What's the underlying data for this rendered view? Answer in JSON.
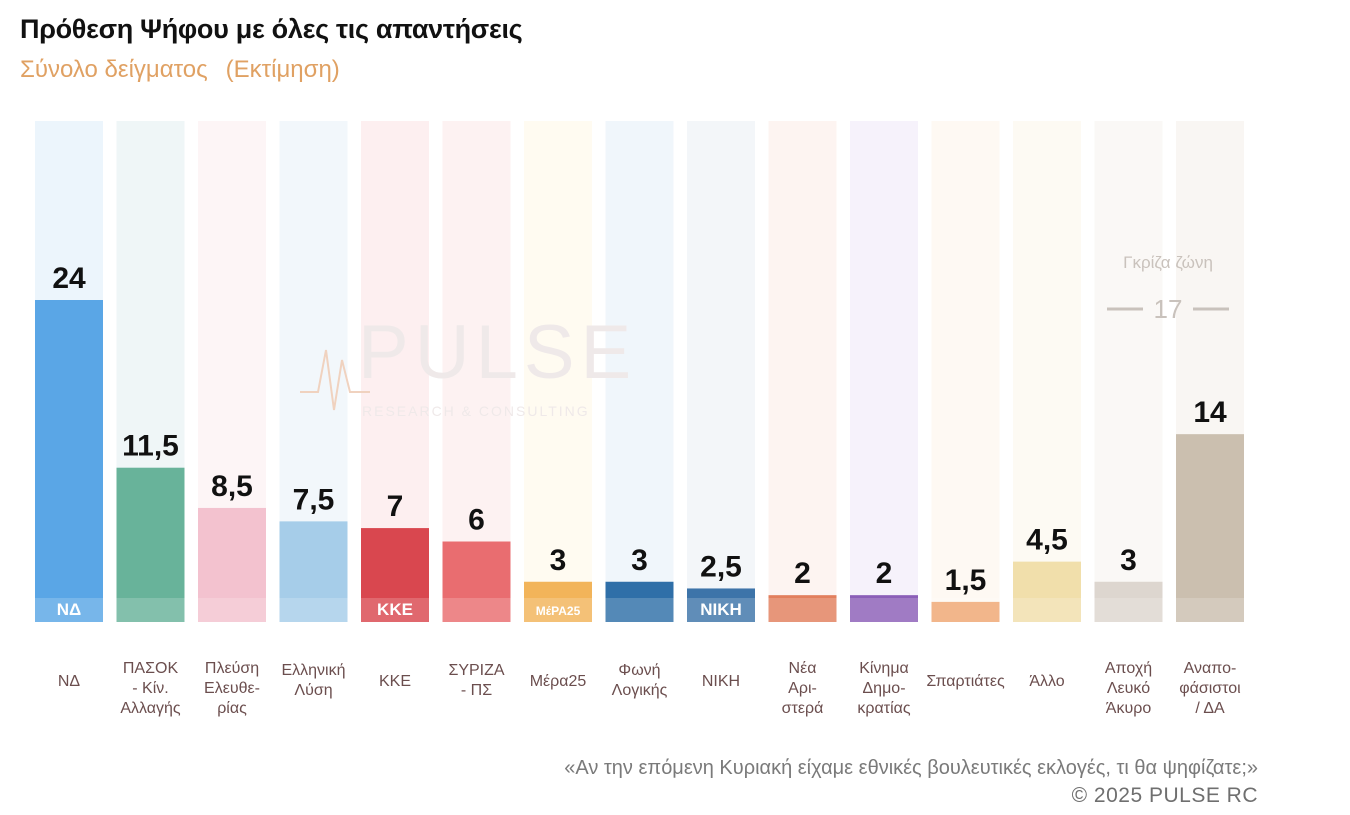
{
  "header": {
    "title": "Πρόθεση Ψήφου με όλες τις απαντήσεις",
    "subtitle_a": "Σύνολο δείγματος",
    "subtitle_b": "(Εκτίμηση)"
  },
  "watermark": {
    "brand": "PULSE",
    "tagline": "RESEARCH & CONSULTING"
  },
  "grey_zone": {
    "label": "Γκρίζα ζώνη",
    "value_text": "17"
  },
  "footer": {
    "question": "«Αν την επόμενη Κυριακή είχαμε εθνικές βουλευτικές εκλογές, τι θα ψηφίζατε;»",
    "copyright": "©  2025  PULSE RC"
  },
  "chart_data": {
    "type": "bar",
    "ylim": [
      0,
      26
    ],
    "grid": false,
    "categories": [
      {
        "lines": [
          "ΝΔ"
        ],
        "value": 24,
        "label": "24",
        "color": "#5aa6e6",
        "bg": "#dcecfa",
        "logo": "ΝΔ"
      },
      {
        "lines": [
          "ΠΑΣΟΚ",
          "- Κίν.",
          "Αλλαγής"
        ],
        "value": 11.5,
        "label": "11,5",
        "color": "#68b39a",
        "bg": "#e1eef0",
        "logo": ""
      },
      {
        "lines": [
          "Πλεύση",
          "Ελευθε-",
          "ρίας"
        ],
        "value": 8.5,
        "label": "8,5",
        "color": "#f3c2cf",
        "bg": "#fbecef",
        "logo": ""
      },
      {
        "lines": [
          "Ελληνική",
          "Λύση"
        ],
        "value": 7.5,
        "label": "7,5",
        "color": "#a6cde9",
        "bg": "#e7f1f8",
        "logo": ""
      },
      {
        "lines": [
          "ΚΚΕ"
        ],
        "value": 7,
        "label": "7",
        "color": "#d9474f",
        "bg": "#fbe2e3",
        "logo": "ΚΚΕ"
      },
      {
        "lines": [
          "ΣΥΡΙΖΑ",
          "- ΠΣ"
        ],
        "value": 6,
        "label": "6",
        "color": "#e96d70",
        "bg": "#fce8e8",
        "logo": ""
      },
      {
        "lines": [
          "Μέρα25"
        ],
        "value": 3,
        "label": "3",
        "color": "#f2b45a",
        "bg": "#fff7e6",
        "logo": "ΜέΡΑ25"
      },
      {
        "lines": [
          "Φωνή",
          "Λογικής"
        ],
        "value": 3,
        "label": "3",
        "color": "#2f6fa8",
        "bg": "#e4eef8",
        "logo": ""
      },
      {
        "lines": [
          "ΝΙΚΗ"
        ],
        "value": 2.5,
        "label": "2,5",
        "color": "#3d74a9",
        "bg": "#e9eef4",
        "logo": "ΝΙΚΗ"
      },
      {
        "lines": [
          "Νέα",
          "Αρι-",
          "στερά"
        ],
        "value": 2,
        "label": "2",
        "color": "#e27f5d",
        "bg": "#fcebe5",
        "logo": ""
      },
      {
        "lines": [
          "Κίνημα",
          "Δημο-",
          "κρατίας"
        ],
        "value": 2,
        "label": "2",
        "color": "#8b5fb8",
        "bg": "#efe8f7",
        "logo": ""
      },
      {
        "lines": [
          "Σπαρτιάτες"
        ],
        "value": 1.5,
        "label": "1,5",
        "color": "#f0a772",
        "bg": "#fdf4ea",
        "logo": ""
      },
      {
        "lines": [
          "Άλλο"
        ],
        "value": 4.5,
        "label": "4,5",
        "color": "#f1dfab",
        "bg": "#fbf5ea",
        "logo": ""
      },
      {
        "lines": [
          "Αποχή",
          "Λευκό",
          "Άκυρο"
        ],
        "value": 3,
        "label": "3",
        "color": "#ddd6cf",
        "bg": "#f6f3ef",
        "logo": ""
      },
      {
        "lines": [
          "Αναπο-",
          "φάσιστοι",
          "/ ΔΑ"
        ],
        "value": 14,
        "label": "14",
        "color": "#cbbfaf",
        "bg": "#f4efe9",
        "logo": ""
      }
    ]
  }
}
